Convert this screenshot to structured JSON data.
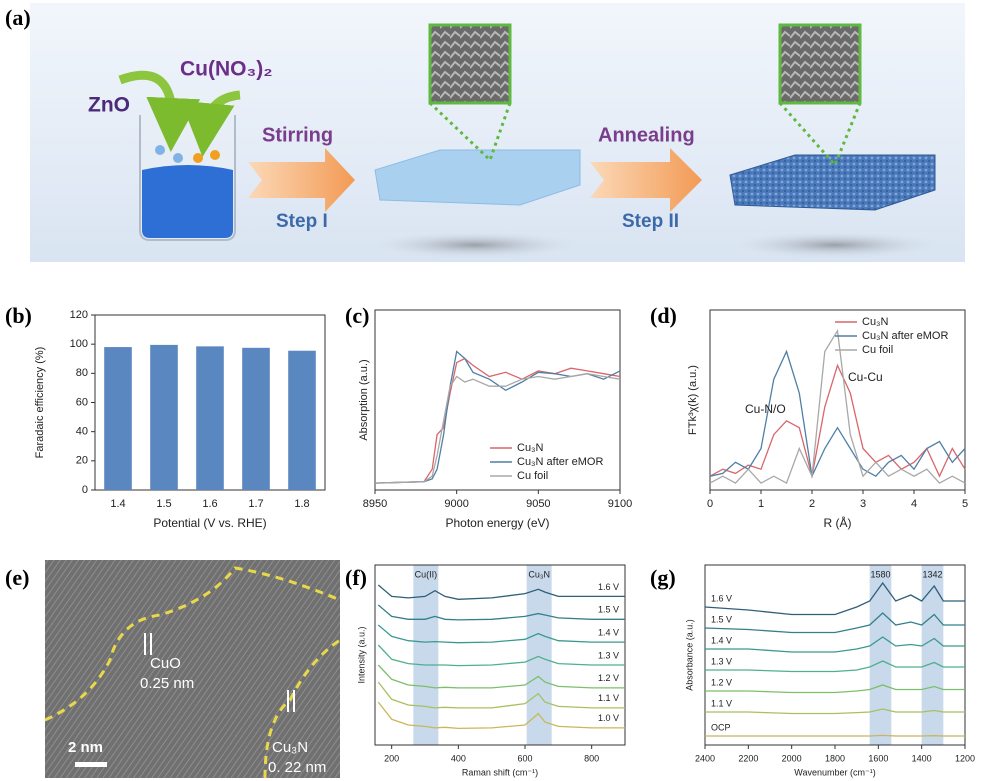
{
  "schematic": {
    "label": "(a)",
    "reagents": [
      "ZnO",
      "Cu(NO₃)₂"
    ],
    "steps": [
      {
        "action": "Stirring",
        "name": "Step I"
      },
      {
        "action": "Annealing",
        "name": "Step II"
      }
    ]
  },
  "chart_data": [
    {
      "type": "bar",
      "panel_label": "(b)",
      "xlabel": "Potential (V vs. RHE)",
      "ylabel": "Faradaic efficiency (%)",
      "categories": [
        "1.4",
        "1.5",
        "1.6",
        "1.7",
        "1.8"
      ],
      "values": [
        98,
        99.5,
        98.5,
        97.5,
        95.5
      ],
      "color": "#5b87c0",
      "ylim": [
        0,
        120
      ],
      "yticks": [
        0,
        20,
        40,
        60,
        80,
        100,
        120
      ]
    },
    {
      "type": "line",
      "panel_label": "(c)",
      "xlabel": "Photon energy (eV)",
      "ylabel": "Absorption (a.u.)",
      "x": [
        8950,
        8980,
        8985,
        8988,
        8992,
        8996,
        9000,
        9005,
        9010,
        9020,
        9030,
        9040,
        9050,
        9060,
        9070,
        9080,
        9090,
        9100
      ],
      "xlim": [
        8950,
        9100
      ],
      "xticks": [
        8950,
        9000,
        9050,
        9100
      ],
      "ylim": [
        0,
        1.3
      ],
      "legend": "lower right",
      "series": [
        {
          "name": "Cu₃N",
          "color": "#d9666a",
          "values": [
            0.05,
            0.06,
            0.15,
            0.4,
            0.45,
            0.7,
            0.92,
            0.95,
            0.9,
            0.82,
            0.85,
            0.8,
            0.86,
            0.84,
            0.88,
            0.86,
            0.84,
            0.82
          ]
        },
        {
          "name": "Cu₃N after eMOR",
          "color": "#4f7fa6",
          "values": [
            0.05,
            0.06,
            0.08,
            0.15,
            0.4,
            0.75,
            1.0,
            0.95,
            0.85,
            0.8,
            0.72,
            0.78,
            0.85,
            0.84,
            0.82,
            0.84,
            0.8,
            0.86
          ]
        },
        {
          "name": "Cu foil",
          "color": "#a8a8a8",
          "values": [
            0.05,
            0.06,
            0.1,
            0.25,
            0.5,
            0.75,
            0.82,
            0.78,
            0.8,
            0.75,
            0.75,
            0.8,
            0.82,
            0.8,
            0.82,
            0.84,
            0.82,
            0.8
          ]
        }
      ]
    },
    {
      "type": "line",
      "panel_label": "(d)",
      "xlabel": "R (Å)",
      "ylabel": "FTk³χ(k) (a.u.)",
      "x": [
        0,
        0.25,
        0.5,
        0.75,
        1,
        1.25,
        1.5,
        1.75,
        2,
        2.25,
        2.5,
        2.75,
        3,
        3.25,
        3.5,
        3.75,
        4,
        4.25,
        4.5,
        4.75,
        5
      ],
      "xlim": [
        0,
        5
      ],
      "xticks": [
        0,
        1,
        2,
        3,
        4,
        5
      ],
      "ylim": [
        0,
        1.3
      ],
      "legend": "upper right",
      "annotations": [
        "Cu-N/O",
        "Cu-Cu"
      ],
      "series": [
        {
          "name": "Cu₃N",
          "color": "#d9666a",
          "values": [
            0.1,
            0.15,
            0.12,
            0.18,
            0.15,
            0.4,
            0.5,
            0.45,
            0.1,
            0.6,
            0.9,
            0.7,
            0.3,
            0.2,
            0.25,
            0.15,
            0.2,
            0.3,
            0.1,
            0.3,
            0.15
          ]
        },
        {
          "name": "Cu₃N after eMOR",
          "color": "#4f7fa6",
          "values": [
            0.1,
            0.12,
            0.2,
            0.15,
            0.3,
            0.8,
            1.0,
            0.7,
            0.1,
            0.3,
            0.45,
            0.3,
            0.15,
            0.1,
            0.2,
            0.25,
            0.15,
            0.3,
            0.35,
            0.2,
            0.3
          ]
        },
        {
          "name": "Cu foil",
          "color": "#a8a8a8",
          "values": [
            0.05,
            0.1,
            0.05,
            0.15,
            0.05,
            0.1,
            0.05,
            0.3,
            0.1,
            1.0,
            1.15,
            0.4,
            0.1,
            0.2,
            0.1,
            0.15,
            0.1,
            0.15,
            0.05,
            0.1,
            0.05
          ]
        }
      ]
    },
    {
      "type": "line",
      "panel_label": "(f)",
      "xlabel": "Raman shift (cm⁻¹)",
      "ylabel": "Intensity (a.u.)",
      "x": [
        160,
        200,
        250,
        300,
        330,
        360,
        400,
        500,
        600,
        640,
        660,
        700,
        800,
        900
      ],
      "xlim": [
        150,
        900
      ],
      "xticks": [
        200,
        400,
        600,
        800
      ],
      "ylim": [
        0,
        6.3
      ],
      "series_labels": "right",
      "bands": [
        {
          "label": "Cu(II)",
          "range": [
            265,
            340
          ]
        },
        {
          "label": "Cu₃N",
          "range": [
            605,
            680
          ]
        }
      ],
      "series": [
        {
          "name": "1.0 V",
          "color": "#c8b85a",
          "values": [
            1.5,
            0.9,
            0.7,
            0.65,
            0.6,
            0.62,
            0.58,
            0.6,
            0.7,
            1.1,
            0.8,
            0.65,
            0.6,
            0.6
          ]
        },
        {
          "name": "1.1 V",
          "color": "#a8c060",
          "values": [
            2.2,
            1.6,
            1.4,
            1.35,
            1.3,
            1.32,
            1.3,
            1.3,
            1.45,
            1.8,
            1.5,
            1.35,
            1.3,
            1.3
          ]
        },
        {
          "name": "1.2 V",
          "color": "#7cbf6a",
          "values": [
            2.8,
            2.3,
            2.1,
            2.05,
            2.0,
            2.02,
            2.0,
            2.0,
            2.1,
            2.4,
            2.2,
            2.05,
            2.0,
            2.0
          ]
        },
        {
          "name": "1.3 V",
          "color": "#4fb08a",
          "values": [
            3.5,
            3.0,
            2.85,
            2.8,
            2.8,
            2.8,
            2.78,
            2.8,
            2.9,
            3.1,
            3.0,
            2.85,
            2.8,
            2.8
          ]
        },
        {
          "name": "1.4 V",
          "color": "#3a9a8f",
          "values": [
            4.2,
            3.8,
            3.65,
            3.6,
            3.62,
            3.6,
            3.58,
            3.6,
            3.7,
            3.9,
            3.8,
            3.65,
            3.6,
            3.6
          ]
        },
        {
          "name": "1.5 V",
          "color": "#357f8a",
          "values": [
            4.9,
            4.5,
            4.4,
            4.4,
            4.5,
            4.4,
            4.38,
            4.4,
            4.5,
            4.6,
            4.55,
            4.45,
            4.4,
            4.4
          ]
        },
        {
          "name": "1.6 V",
          "color": "#2f5f78",
          "values": [
            5.6,
            5.2,
            5.15,
            5.2,
            5.4,
            5.2,
            5.1,
            5.15,
            5.3,
            5.45,
            5.35,
            5.2,
            5.2,
            5.2
          ]
        }
      ]
    },
    {
      "type": "line",
      "panel_label": "(g)",
      "xlabel": "Wavenumber (cm⁻¹)",
      "ylabel": "Absorbance (a.u.)",
      "x": [
        2400,
        2200,
        2000,
        1800,
        1700,
        1640,
        1580,
        1520,
        1450,
        1400,
        1342,
        1300,
        1200
      ],
      "xlim": [
        2400,
        1200
      ],
      "xticks": [
        2400,
        2200,
        2000,
        1800,
        1600,
        1400,
        1200
      ],
      "ylim": [
        0,
        6
      ],
      "series_labels": "left",
      "bands": [
        {
          "label": "1580",
          "range": [
            1640,
            1540
          ]
        },
        {
          "label": "1342",
          "range": [
            1400,
            1300
          ]
        }
      ],
      "series": [
        {
          "name": "OCP",
          "color": "#c9b560",
          "values": [
            0.3,
            0.3,
            0.3,
            0.3,
            0.3,
            0.3,
            0.32,
            0.3,
            0.3,
            0.3,
            0.31,
            0.3,
            0.3
          ]
        },
        {
          "name": "1.1 V",
          "color": "#a8c060",
          "values": [
            1.1,
            1.1,
            1.05,
            1.05,
            1.08,
            1.1,
            1.2,
            1.1,
            1.1,
            1.1,
            1.15,
            1.1,
            1.1
          ]
        },
        {
          "name": "1.2 V",
          "color": "#7cbf6a",
          "values": [
            1.8,
            1.8,
            1.75,
            1.75,
            1.8,
            1.85,
            2.0,
            1.85,
            1.85,
            1.85,
            1.95,
            1.85,
            1.85
          ]
        },
        {
          "name": "1.3 V",
          "color": "#4fb08a",
          "values": [
            2.5,
            2.5,
            2.45,
            2.45,
            2.5,
            2.6,
            2.8,
            2.6,
            2.6,
            2.6,
            2.75,
            2.6,
            2.6
          ]
        },
        {
          "name": "1.4 V",
          "color": "#3a9a8f",
          "values": [
            3.2,
            3.2,
            3.1,
            3.1,
            3.2,
            3.3,
            3.6,
            3.3,
            3.35,
            3.3,
            3.55,
            3.3,
            3.3
          ]
        },
        {
          "name": "1.5 V",
          "color": "#357f8a",
          "values": [
            3.9,
            3.85,
            3.75,
            3.75,
            3.9,
            4.0,
            4.4,
            4.0,
            4.1,
            4.0,
            4.35,
            4.0,
            4.0
          ]
        },
        {
          "name": "1.6 V",
          "color": "#2f5f78",
          "values": [
            4.6,
            4.5,
            4.35,
            4.35,
            4.6,
            4.8,
            5.4,
            4.8,
            5.0,
            4.8,
            5.3,
            4.8,
            4.8
          ]
        }
      ]
    }
  ],
  "micrograph": {
    "label": "(e)",
    "phases": [
      {
        "name": "CuO",
        "spacing": "0.25 nm"
      },
      {
        "name": "Cu₃N",
        "spacing": "0. 22 nm"
      }
    ],
    "scale_bar": "2 nm"
  }
}
